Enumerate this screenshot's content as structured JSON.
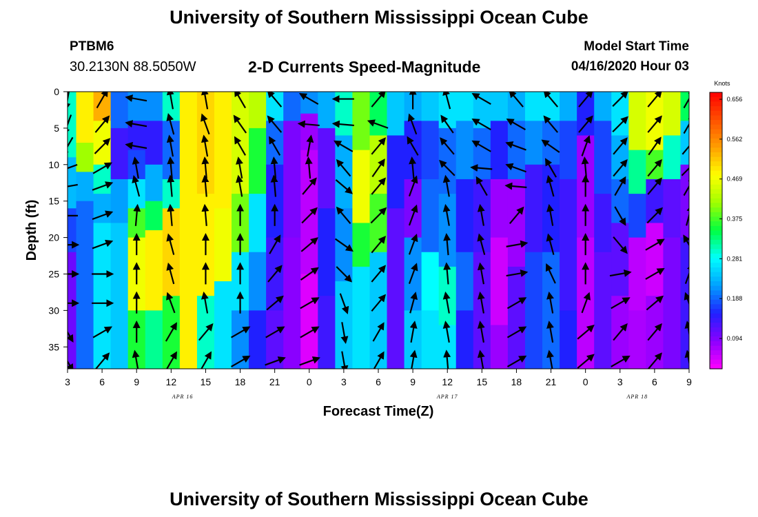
{
  "title": "University of Southern Mississippi Ocean Cube",
  "footer_title": "University of Southern Mississippi Ocean Cube",
  "station": {
    "name": "PTBM6",
    "coords": "30.2130N 88.5050W"
  },
  "subtitle": "2-D Currents Speed-Magnitude",
  "model_start": {
    "label": "Model Start Time",
    "value": "04/16/2020 Hour 03"
  },
  "chart_data": {
    "type": "heatmap",
    "title": "2-D Currents Speed-Magnitude",
    "xlabel": "Forecast Time(Z)",
    "ylabel": "Depth (ft)",
    "x_unit": "hours since 04/16/2020 03Z",
    "x_range": [
      0,
      54
    ],
    "x_ticks": [
      {
        "h": 0,
        "label": "3"
      },
      {
        "h": 3,
        "label": "6"
      },
      {
        "h": 6,
        "label": "9"
      },
      {
        "h": 9,
        "label": "12"
      },
      {
        "h": 12,
        "label": "15"
      },
      {
        "h": 15,
        "label": "18"
      },
      {
        "h": 18,
        "label": "21"
      },
      {
        "h": 21,
        "label": "0"
      },
      {
        "h": 24,
        "label": "3"
      },
      {
        "h": 27,
        "label": "6"
      },
      {
        "h": 30,
        "label": "9"
      },
      {
        "h": 33,
        "label": "12"
      },
      {
        "h": 36,
        "label": "15"
      },
      {
        "h": 39,
        "label": "18"
      },
      {
        "h": 42,
        "label": "21"
      },
      {
        "h": 45,
        "label": "0"
      },
      {
        "h": 48,
        "label": "3"
      },
      {
        "h": 51,
        "label": "6"
      },
      {
        "h": 54,
        "label": "9"
      }
    ],
    "date_labels": [
      {
        "h": 10,
        "label": "APR 16"
      },
      {
        "h": 33,
        "label": "APR 17"
      },
      {
        "h": 49.5,
        "label": "APR 18"
      }
    ],
    "y_range": [
      0,
      38
    ],
    "y_ticks": [
      0,
      5,
      10,
      15,
      20,
      25,
      30,
      35
    ],
    "y_reversed": true,
    "colorbar": {
      "unit": "Knots",
      "ticks": [
        "0.656",
        "0.562",
        "0.469",
        "0.375",
        "0.281",
        "0.188",
        "0.094"
      ],
      "range": [
        0.0,
        0.7
      ],
      "colors": [
        "#ff00ff",
        "#8a00ff",
        "#2020ff",
        "#00a0ff",
        "#00ffff",
        "#00ff40",
        "#a0ff00",
        "#ffff00",
        "#ffa000",
        "#ff5000",
        "#ff0000"
      ]
    },
    "speed_columns": [
      {
        "h": 0,
        "segments": [
          [
            0,
            9,
            0.3
          ],
          [
            9,
            16,
            0.23
          ],
          [
            16,
            22,
            0.16
          ],
          [
            22,
            38,
            0.09
          ]
        ]
      },
      {
        "h": 1.5,
        "segments": [
          [
            0,
            7,
            0.5
          ],
          [
            7,
            11,
            0.42
          ],
          [
            11,
            15,
            0.22
          ],
          [
            15,
            38,
            0.18
          ]
        ]
      },
      {
        "h": 3,
        "segments": [
          [
            0,
            4,
            0.55
          ],
          [
            4,
            10,
            0.48
          ],
          [
            10,
            14,
            0.3
          ],
          [
            14,
            18,
            0.22
          ],
          [
            18,
            38,
            0.26
          ]
        ]
      },
      {
        "h": 4.5,
        "segments": [
          [
            0,
            5,
            0.18
          ],
          [
            5,
            12,
            0.12
          ],
          [
            12,
            18,
            0.21
          ],
          [
            18,
            38,
            0.24
          ]
        ]
      },
      {
        "h": 6,
        "segments": [
          [
            0,
            4,
            0.2
          ],
          [
            4,
            8,
            0.13
          ],
          [
            8,
            12,
            0.16
          ],
          [
            12,
            16,
            0.26
          ],
          [
            16,
            20,
            0.38
          ],
          [
            20,
            30,
            0.48
          ],
          [
            30,
            38,
            0.36
          ]
        ]
      },
      {
        "h": 7.5,
        "segments": [
          [
            0,
            4,
            0.2
          ],
          [
            4,
            10,
            0.13
          ],
          [
            10,
            15,
            0.22
          ],
          [
            15,
            19,
            0.34
          ],
          [
            19,
            30,
            0.5
          ],
          [
            30,
            38,
            0.32
          ]
        ]
      },
      {
        "h": 9,
        "segments": [
          [
            0,
            4,
            0.3
          ],
          [
            4,
            12,
            0.18
          ],
          [
            12,
            16,
            0.3
          ],
          [
            16,
            28,
            0.52
          ],
          [
            28,
            38,
            0.36
          ]
        ]
      },
      {
        "h": 10.5,
        "segments": [
          [
            0,
            38,
            0.5
          ]
        ]
      },
      {
        "h": 12,
        "segments": [
          [
            0,
            14,
            0.52
          ],
          [
            14,
            28,
            0.5
          ],
          [
            28,
            38,
            0.3
          ]
        ]
      },
      {
        "h": 13.5,
        "segments": [
          [
            0,
            16,
            0.5
          ],
          [
            16,
            26,
            0.48
          ],
          [
            26,
            38,
            0.26
          ]
        ]
      },
      {
        "h": 15,
        "segments": [
          [
            0,
            14,
            0.46
          ],
          [
            14,
            22,
            0.4
          ],
          [
            22,
            30,
            0.26
          ],
          [
            30,
            38,
            0.2
          ]
        ]
      },
      {
        "h": 16.5,
        "segments": [
          [
            0,
            5,
            0.44
          ],
          [
            5,
            14,
            0.36
          ],
          [
            14,
            22,
            0.26
          ],
          [
            22,
            30,
            0.2
          ],
          [
            30,
            38,
            0.14
          ]
        ]
      },
      {
        "h": 18,
        "segments": [
          [
            0,
            4,
            0.26
          ],
          [
            4,
            10,
            0.18
          ],
          [
            10,
            20,
            0.14
          ],
          [
            20,
            30,
            0.12
          ],
          [
            30,
            38,
            0.1
          ]
        ]
      },
      {
        "h": 19.5,
        "segments": [
          [
            0,
            4,
            0.18
          ],
          [
            4,
            20,
            0.08
          ],
          [
            20,
            38,
            0.07
          ]
        ]
      },
      {
        "h": 21,
        "segments": [
          [
            0,
            3,
            0.2
          ],
          [
            3,
            8,
            0.06
          ],
          [
            8,
            25,
            0.04
          ],
          [
            25,
            38,
            0.02
          ]
        ]
      },
      {
        "h": 22.5,
        "segments": [
          [
            0,
            5,
            0.22
          ],
          [
            5,
            16,
            0.1
          ],
          [
            16,
            28,
            0.14
          ],
          [
            28,
            38,
            0.12
          ]
        ]
      },
      {
        "h": 24,
        "segments": [
          [
            0,
            6,
            0.3
          ],
          [
            6,
            16,
            0.22
          ],
          [
            16,
            26,
            0.2
          ],
          [
            26,
            38,
            0.24
          ]
        ]
      },
      {
        "h": 25.5,
        "segments": [
          [
            0,
            8,
            0.4
          ],
          [
            8,
            18,
            0.48
          ],
          [
            18,
            24,
            0.36
          ],
          [
            24,
            38,
            0.26
          ]
        ]
      },
      {
        "h": 27,
        "segments": [
          [
            0,
            6,
            0.34
          ],
          [
            6,
            14,
            0.44
          ],
          [
            14,
            22,
            0.38
          ],
          [
            22,
            30,
            0.24
          ],
          [
            30,
            38,
            0.24
          ]
        ]
      },
      {
        "h": 28.5,
        "segments": [
          [
            0,
            6,
            0.24
          ],
          [
            6,
            16,
            0.14
          ],
          [
            16,
            38,
            0.1
          ]
        ]
      },
      {
        "h": 30,
        "segments": [
          [
            0,
            4,
            0.22
          ],
          [
            4,
            12,
            0.14
          ],
          [
            12,
            20,
            0.08
          ],
          [
            20,
            30,
            0.2
          ],
          [
            30,
            38,
            0.24
          ]
        ]
      },
      {
        "h": 31.5,
        "segments": [
          [
            0,
            4,
            0.24
          ],
          [
            4,
            12,
            0.16
          ],
          [
            12,
            22,
            0.18
          ],
          [
            22,
            30,
            0.28
          ],
          [
            30,
            38,
            0.26
          ]
        ]
      },
      {
        "h": 33,
        "segments": [
          [
            0,
            5,
            0.26
          ],
          [
            5,
            14,
            0.18
          ],
          [
            14,
            24,
            0.2
          ],
          [
            24,
            32,
            0.3
          ],
          [
            32,
            38,
            0.26
          ]
        ]
      },
      {
        "h": 34.5,
        "segments": [
          [
            0,
            4,
            0.26
          ],
          [
            4,
            12,
            0.2
          ],
          [
            12,
            22,
            0.14
          ],
          [
            22,
            30,
            0.18
          ],
          [
            30,
            38,
            0.14
          ]
        ]
      },
      {
        "h": 36,
        "segments": [
          [
            0,
            5,
            0.24
          ],
          [
            5,
            12,
            0.18
          ],
          [
            12,
            22,
            0.12
          ],
          [
            22,
            38,
            0.1
          ]
        ]
      },
      {
        "h": 37.5,
        "segments": [
          [
            0,
            4,
            0.24
          ],
          [
            4,
            12,
            0.14
          ],
          [
            12,
            20,
            0.06
          ],
          [
            20,
            32,
            0.03
          ],
          [
            32,
            38,
            0.06
          ]
        ]
      },
      {
        "h": 39,
        "segments": [
          [
            0,
            4,
            0.22
          ],
          [
            4,
            12,
            0.18
          ],
          [
            12,
            24,
            0.06
          ],
          [
            24,
            38,
            0.1
          ]
        ]
      },
      {
        "h": 40.5,
        "segments": [
          [
            0,
            4,
            0.26
          ],
          [
            4,
            10,
            0.2
          ],
          [
            10,
            22,
            0.12
          ],
          [
            22,
            38,
            0.16
          ]
        ]
      },
      {
        "h": 42,
        "segments": [
          [
            0,
            4,
            0.26
          ],
          [
            4,
            10,
            0.18
          ],
          [
            10,
            22,
            0.14
          ],
          [
            22,
            38,
            0.18
          ]
        ]
      },
      {
        "h": 43.5,
        "segments": [
          [
            0,
            4,
            0.22
          ],
          [
            4,
            12,
            0.16
          ],
          [
            12,
            30,
            0.12
          ],
          [
            30,
            38,
            0.14
          ]
        ]
      },
      {
        "h": 45,
        "segments": [
          [
            0,
            6,
            0.14
          ],
          [
            6,
            20,
            0.06
          ],
          [
            20,
            38,
            0.04
          ]
        ]
      },
      {
        "h": 46.5,
        "segments": [
          [
            0,
            4,
            0.22
          ],
          [
            4,
            14,
            0.16
          ],
          [
            14,
            22,
            0.12
          ],
          [
            22,
            38,
            0.1
          ]
        ]
      },
      {
        "h": 48,
        "segments": [
          [
            0,
            6,
            0.26
          ],
          [
            6,
            12,
            0.22
          ],
          [
            12,
            18,
            0.18
          ],
          [
            18,
            28,
            0.1
          ],
          [
            28,
            38,
            0.06
          ]
        ]
      },
      {
        "h": 49.5,
        "segments": [
          [
            0,
            8,
            0.46
          ],
          [
            8,
            14,
            0.32
          ],
          [
            14,
            20,
            0.16
          ],
          [
            20,
            30,
            0.04
          ],
          [
            30,
            38,
            0.05
          ]
        ]
      },
      {
        "h": 51,
        "segments": [
          [
            0,
            8,
            0.48
          ],
          [
            8,
            12,
            0.38
          ],
          [
            12,
            18,
            0.12
          ],
          [
            18,
            28,
            0.03
          ],
          [
            28,
            38,
            0.06
          ]
        ]
      },
      {
        "h": 52.5,
        "segments": [
          [
            0,
            6,
            0.46
          ],
          [
            6,
            12,
            0.3
          ],
          [
            12,
            20,
            0.1
          ],
          [
            20,
            38,
            0.08
          ]
        ]
      },
      {
        "h": 54,
        "segments": [
          [
            0,
            4,
            0.34
          ],
          [
            4,
            10,
            0.24
          ],
          [
            10,
            20,
            0.08
          ],
          [
            20,
            38,
            0.12
          ]
        ]
      }
    ],
    "vectors_note": "current direction arrows; angle in degrees (0 = north/up, clockwise)",
    "vector_depths": [
      1,
      4.5,
      7.5,
      10.5,
      13,
      17,
      21,
      25,
      29,
      33,
      37
    ],
    "vector_hours": [
      0,
      3,
      6,
      9,
      12,
      15,
      18,
      21,
      24,
      27,
      30,
      33,
      36,
      39,
      42,
      45,
      48,
      51,
      54
    ],
    "vector_angles": [
      [
        190,
        30,
        280,
        350,
        350,
        330,
        320,
        300,
        270,
        40,
        0,
        345,
        300,
        320,
        320,
        40,
        45,
        40,
        30
      ],
      [
        200,
        40,
        280,
        345,
        340,
        325,
        320,
        275,
        275,
        290,
        340,
        325,
        300,
        300,
        320,
        40,
        45,
        40,
        30
      ],
      [
        210,
        45,
        280,
        350,
        350,
        330,
        330,
        10,
        300,
        40,
        330,
        320,
        300,
        290,
        305,
        20,
        40,
        35,
        40
      ],
      [
        250,
        60,
        350,
        355,
        355,
        350,
        355,
        355,
        320,
        35,
        355,
        315,
        275,
        290,
        330,
        355,
        40,
        40,
        45
      ],
      [
        260,
        70,
        345,
        355,
        355,
        350,
        355,
        40,
        130,
        40,
        20,
        350,
        330,
        275,
        345,
        0,
        30,
        40,
        30
      ],
      [
        270,
        70,
        5,
        355,
        355,
        0,
        360,
        45,
        320,
        45,
        20,
        350,
        350,
        40,
        350,
        0,
        150,
        45,
        15
      ],
      [
        90,
        70,
        0,
        345,
        0,
        0,
        30,
        50,
        125,
        40,
        20,
        355,
        345,
        80,
        345,
        0,
        140,
        60,
        330
      ],
      [
        90,
        90,
        0,
        345,
        0,
        0,
        40,
        55,
        135,
        40,
        20,
        355,
        350,
        80,
        335,
        0,
        80,
        60,
        20
      ],
      [
        90,
        90,
        0,
        340,
        350,
        0,
        50,
        60,
        160,
        40,
        15,
        350,
        350,
        60,
        350,
        20,
        60,
        50,
        340
      ],
      [
        150,
        60,
        0,
        30,
        40,
        60,
        60,
        60,
        170,
        30,
        10,
        350,
        350,
        60,
        350,
        50,
        40,
        40,
        350
      ],
      [
        150,
        40,
        350,
        30,
        30,
        60,
        70,
        70,
        170,
        30,
        10,
        355,
        350,
        60,
        350,
        50,
        60,
        40,
        350
      ]
    ]
  }
}
